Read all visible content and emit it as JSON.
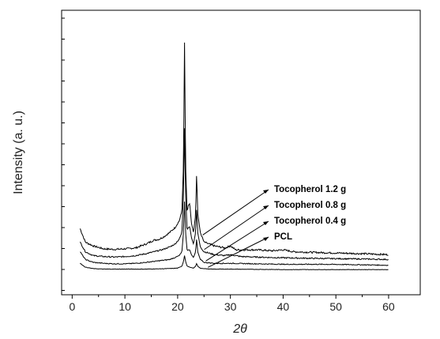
{
  "chart_data": {
    "type": "line",
    "xlabel": "2θ",
    "ylabel": "Intensity (a. u.)",
    "xlim": [
      -2,
      66
    ],
    "x_ticks": [
      0,
      10,
      20,
      30,
      40,
      50,
      60
    ],
    "y_axis_tick_labels": false,
    "legend_placement": "inline-right",
    "grid": false,
    "series": [
      {
        "name": "Tocopherol 1.2 g",
        "baseline": 44,
        "points": [
          [
            1.5,
            44
          ],
          [
            2.5,
            30
          ],
          [
            4,
            26
          ],
          [
            6,
            23
          ],
          [
            8,
            22.5
          ],
          [
            10,
            23
          ],
          [
            12,
            24
          ],
          [
            14,
            28
          ],
          [
            15.5,
            32
          ],
          [
            16.5,
            33
          ],
          [
            17.5,
            36
          ],
          [
            18.5,
            40
          ],
          [
            19.5,
            45
          ],
          [
            20.3,
            52
          ],
          [
            20.8,
            62
          ],
          [
            21.1,
            110
          ],
          [
            21.3,
            237
          ],
          [
            21.5,
            110
          ],
          [
            21.8,
            60
          ],
          [
            22,
            68
          ],
          [
            22.3,
            70
          ],
          [
            22.6,
            50
          ],
          [
            23,
            40
          ],
          [
            23.4,
            58
          ],
          [
            23.6,
            103
          ],
          [
            23.8,
            60
          ],
          [
            24.3,
            40
          ],
          [
            25,
            30
          ],
          [
            27,
            26
          ],
          [
            29,
            24
          ],
          [
            30,
            26
          ],
          [
            31,
            22
          ],
          [
            35,
            22
          ],
          [
            38,
            21
          ],
          [
            40,
            22
          ],
          [
            42,
            20
          ],
          [
            48,
            19
          ],
          [
            55,
            18
          ],
          [
            60,
            17
          ]
        ]
      },
      {
        "name": "Tocopherol 0.8 g",
        "baseline": 30,
        "points": [
          [
            1.5,
            30
          ],
          [
            2.5,
            20
          ],
          [
            4,
            16
          ],
          [
            6,
            15
          ],
          [
            8,
            14.5
          ],
          [
            10,
            15
          ],
          [
            12,
            16
          ],
          [
            14,
            18
          ],
          [
            15.5,
            20
          ],
          [
            17,
            22
          ],
          [
            18.5,
            25
          ],
          [
            19.5,
            28
          ],
          [
            20.3,
            33
          ],
          [
            20.8,
            40
          ],
          [
            21.1,
            80
          ],
          [
            21.3,
            148
          ],
          [
            21.5,
            80
          ],
          [
            21.8,
            42
          ],
          [
            22,
            45
          ],
          [
            22.3,
            46
          ],
          [
            22.6,
            35
          ],
          [
            23,
            28
          ],
          [
            23.4,
            40
          ],
          [
            23.6,
            66
          ],
          [
            23.8,
            40
          ],
          [
            24.3,
            25
          ],
          [
            25,
            20
          ],
          [
            27,
            17
          ],
          [
            29,
            16
          ],
          [
            30,
            17
          ],
          [
            32,
            15
          ],
          [
            35,
            14.5
          ],
          [
            38,
            14
          ],
          [
            42,
            13.5
          ],
          [
            48,
            13
          ],
          [
            55,
            12.5
          ],
          [
            60,
            12
          ]
        ]
      },
      {
        "name": "Tocopherol 0.4 g",
        "baseline": 20,
        "points": [
          [
            1.5,
            20
          ],
          [
            2.5,
            12
          ],
          [
            4,
            9
          ],
          [
            6,
            8
          ],
          [
            8,
            7.5
          ],
          [
            10,
            7.5
          ],
          [
            12,
            8
          ],
          [
            14,
            9
          ],
          [
            15.5,
            10
          ],
          [
            17,
            11
          ],
          [
            18.5,
            12
          ],
          [
            19.5,
            14
          ],
          [
            20.3,
            16
          ],
          [
            20.8,
            20
          ],
          [
            21.1,
            40
          ],
          [
            21.3,
            72
          ],
          [
            21.5,
            40
          ],
          [
            21.8,
            21
          ],
          [
            22,
            22
          ],
          [
            22.3,
            22
          ],
          [
            22.6,
            17
          ],
          [
            23,
            14
          ],
          [
            23.4,
            20
          ],
          [
            23.6,
            34
          ],
          [
            23.8,
            20
          ],
          [
            24.3,
            12
          ],
          [
            25,
            9
          ],
          [
            27,
            8
          ],
          [
            30,
            8
          ],
          [
            35,
            7.5
          ],
          [
            40,
            7
          ],
          [
            48,
            7
          ],
          [
            55,
            6.5
          ],
          [
            60,
            6
          ]
        ]
      },
      {
        "name": "PCL",
        "baseline": 8,
        "points": [
          [
            1.5,
            8
          ],
          [
            2.5,
            4
          ],
          [
            4,
            2.5
          ],
          [
            6,
            2
          ],
          [
            8,
            2
          ],
          [
            10,
            2
          ],
          [
            14,
            2
          ],
          [
            18,
            2.5
          ],
          [
            20,
            3
          ],
          [
            20.8,
            5
          ],
          [
            21.1,
            10
          ],
          [
            21.3,
            16
          ],
          [
            21.5,
            10
          ],
          [
            21.8,
            5
          ],
          [
            22.3,
            4
          ],
          [
            23,
            3
          ],
          [
            23.4,
            5
          ],
          [
            23.6,
            8
          ],
          [
            23.8,
            5
          ],
          [
            24.3,
            3
          ],
          [
            26,
            2
          ],
          [
            30,
            2
          ],
          [
            40,
            1.5
          ],
          [
            50,
            1.5
          ],
          [
            60,
            1.5
          ]
        ]
      }
    ]
  }
}
